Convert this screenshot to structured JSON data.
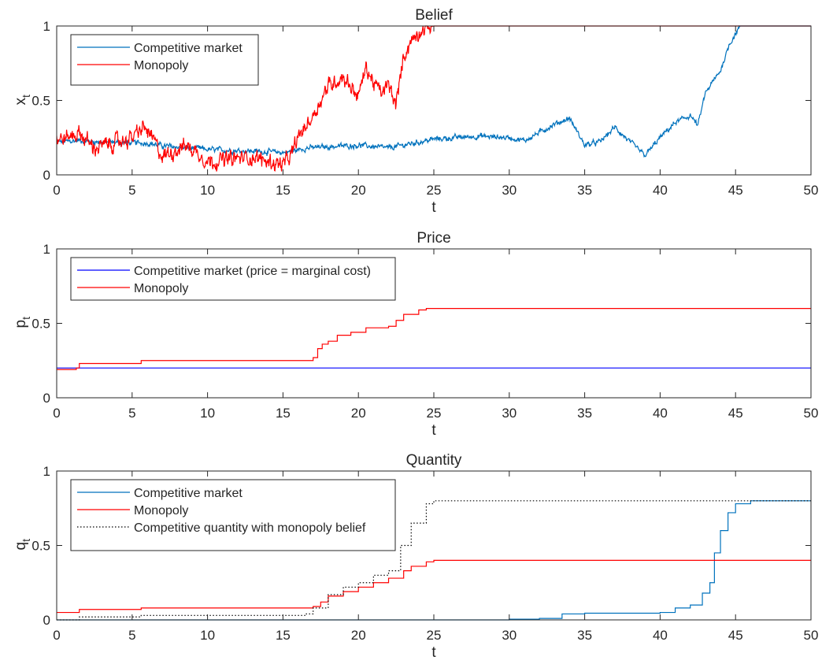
{
  "chart_data": [
    {
      "type": "line",
      "title": "Belief",
      "xlabel": "t",
      "ylabel": "x",
      "ylabel_sub": "t",
      "xlim": [
        0,
        50
      ],
      "ylim": [
        0,
        1
      ],
      "x_ticks": [
        "0",
        "5",
        "10",
        "15",
        "20",
        "25",
        "30",
        "35",
        "40",
        "45",
        "50"
      ],
      "y_ticks": [
        "0",
        "0.5",
        "1"
      ],
      "grid": false,
      "legend_position": "top-left",
      "series": [
        {
          "name": "Competitive market",
          "color": "#0072BD",
          "style": "solid",
          "noise": 0.012,
          "points": [
            [
              0,
              0.22
            ],
            [
              1.5,
              0.23
            ],
            [
              3,
              0.22
            ],
            [
              5,
              0.215
            ],
            [
              6,
              0.215
            ],
            [
              7,
              0.195
            ],
            [
              9,
              0.18
            ],
            [
              10,
              0.17
            ],
            [
              13,
              0.16
            ],
            [
              15,
              0.15
            ],
            [
              15.7,
              0.16
            ],
            [
              16.5,
              0.18
            ],
            [
              20,
              0.2
            ],
            [
              22,
              0.18
            ],
            [
              25,
              0.24
            ],
            [
              28,
              0.26
            ],
            [
              30,
              0.25
            ],
            [
              31,
              0.23
            ],
            [
              33,
              0.34
            ],
            [
              34,
              0.38
            ],
            [
              35,
              0.2
            ],
            [
              36,
              0.22
            ],
            [
              37,
              0.32
            ],
            [
              38,
              0.22
            ],
            [
              39,
              0.13
            ],
            [
              40,
              0.25
            ],
            [
              41,
              0.35
            ],
            [
              42,
              0.4
            ],
            [
              42.5,
              0.33
            ],
            [
              43,
              0.55
            ],
            [
              44,
              0.7
            ],
            [
              44.6,
              0.88
            ],
            [
              45.3,
              1.0
            ],
            [
              50,
              1.0
            ]
          ]
        },
        {
          "name": "Monopoly",
          "color": "#FF0000",
          "style": "solid",
          "noise": 0.035,
          "points": [
            [
              0,
              0.23
            ],
            [
              1.5,
              0.28
            ],
            [
              2.5,
              0.18
            ],
            [
              4,
              0.22
            ],
            [
              5,
              0.25
            ],
            [
              5.8,
              0.32
            ],
            [
              6.5,
              0.22
            ],
            [
              7,
              0.12
            ],
            [
              8.5,
              0.2
            ],
            [
              9.5,
              0.14
            ],
            [
              10,
              0.09
            ],
            [
              12,
              0.11
            ],
            [
              13,
              0.12
            ],
            [
              14,
              0.09
            ],
            [
              15,
              0.07
            ],
            [
              15.5,
              0.12
            ],
            [
              16,
              0.25
            ],
            [
              17,
              0.4
            ],
            [
              18,
              0.6
            ],
            [
              19,
              0.66
            ],
            [
              20,
              0.53
            ],
            [
              20.5,
              0.72
            ],
            [
              21,
              0.62
            ],
            [
              21.5,
              0.55
            ],
            [
              22,
              0.6
            ],
            [
              22.5,
              0.47
            ],
            [
              23,
              0.8
            ],
            [
              23.5,
              0.9
            ],
            [
              24.2,
              0.98
            ],
            [
              25,
              1.0
            ],
            [
              50,
              1.0
            ]
          ]
        }
      ]
    },
    {
      "type": "line",
      "title": "Price",
      "xlabel": "t",
      "ylabel": "p",
      "ylabel_sub": "t",
      "xlim": [
        0,
        50
      ],
      "ylim": [
        0,
        1
      ],
      "x_ticks": [
        "0",
        "5",
        "10",
        "15",
        "20",
        "25",
        "30",
        "35",
        "40",
        "45",
        "50"
      ],
      "y_ticks": [
        "0",
        "0.5",
        "1"
      ],
      "grid": false,
      "legend_position": "top-left",
      "series": [
        {
          "name": "Competitive market (price = marginal cost)",
          "color": "#0000FF",
          "style": "solid",
          "points": [
            [
              0,
              0.2
            ],
            [
              50,
              0.2
            ]
          ]
        },
        {
          "name": "Monopoly",
          "color": "#FF0000",
          "style": "solid",
          "step": true,
          "points": [
            [
              0,
              0.19
            ],
            [
              1.3,
              0.2
            ],
            [
              1.5,
              0.23
            ],
            [
              5.6,
              0.25
            ],
            [
              17,
              0.27
            ],
            [
              17.3,
              0.33
            ],
            [
              17.6,
              0.36
            ],
            [
              18,
              0.38
            ],
            [
              18.6,
              0.42
            ],
            [
              19.5,
              0.44
            ],
            [
              20.5,
              0.47
            ],
            [
              22,
              0.48
            ],
            [
              22.5,
              0.52
            ],
            [
              23,
              0.56
            ],
            [
              24,
              0.59
            ],
            [
              24.5,
              0.6
            ],
            [
              50,
              0.6
            ]
          ]
        }
      ]
    },
    {
      "type": "line",
      "title": "Quantity",
      "xlabel": "t",
      "ylabel": "q",
      "ylabel_sub": "t",
      "xlim": [
        0,
        50
      ],
      "ylim": [
        0,
        1
      ],
      "x_ticks": [
        "0",
        "5",
        "10",
        "15",
        "20",
        "25",
        "30",
        "35",
        "40",
        "45",
        "50"
      ],
      "y_ticks": [
        "0",
        "0.5",
        "1"
      ],
      "grid": false,
      "legend_position": "top-left",
      "series": [
        {
          "name": "Competitive market",
          "color": "#0072BD",
          "style": "solid",
          "step": true,
          "points": [
            [
              0,
              0.0
            ],
            [
              25,
              0.0
            ],
            [
              30,
              0.005
            ],
            [
              32,
              0.01
            ],
            [
              33.5,
              0.04
            ],
            [
              35,
              0.045
            ],
            [
              40,
              0.05
            ],
            [
              41,
              0.08
            ],
            [
              42,
              0.1
            ],
            [
              42.8,
              0.18
            ],
            [
              43.3,
              0.25
            ],
            [
              43.6,
              0.45
            ],
            [
              44,
              0.6
            ],
            [
              44.5,
              0.72
            ],
            [
              45,
              0.78
            ],
            [
              46,
              0.8
            ],
            [
              50,
              0.8
            ]
          ]
        },
        {
          "name": "Monopoly",
          "color": "#FF0000",
          "style": "solid",
          "step": true,
          "points": [
            [
              0,
              0.05
            ],
            [
              1.5,
              0.07
            ],
            [
              5.6,
              0.08
            ],
            [
              17,
              0.09
            ],
            [
              17.5,
              0.12
            ],
            [
              18,
              0.16
            ],
            [
              19,
              0.19
            ],
            [
              20,
              0.22
            ],
            [
              21,
              0.25
            ],
            [
              22,
              0.28
            ],
            [
              23,
              0.33
            ],
            [
              23.5,
              0.36
            ],
            [
              24.5,
              0.39
            ],
            [
              25,
              0.4
            ],
            [
              50,
              0.4
            ]
          ]
        },
        {
          "name": "Competitive quantity with monopoly belief",
          "color": "#000000",
          "style": "dotted",
          "step": true,
          "points": [
            [
              0,
              0.0
            ],
            [
              1.5,
              0.02
            ],
            [
              5.6,
              0.03
            ],
            [
              16.5,
              0.04
            ],
            [
              17,
              0.08
            ],
            [
              18,
              0.17
            ],
            [
              19,
              0.22
            ],
            [
              20,
              0.25
            ],
            [
              21,
              0.3
            ],
            [
              22,
              0.33
            ],
            [
              22.8,
              0.5
            ],
            [
              23.5,
              0.65
            ],
            [
              24.5,
              0.78
            ],
            [
              25,
              0.8
            ],
            [
              50,
              0.8
            ]
          ]
        }
      ]
    }
  ]
}
